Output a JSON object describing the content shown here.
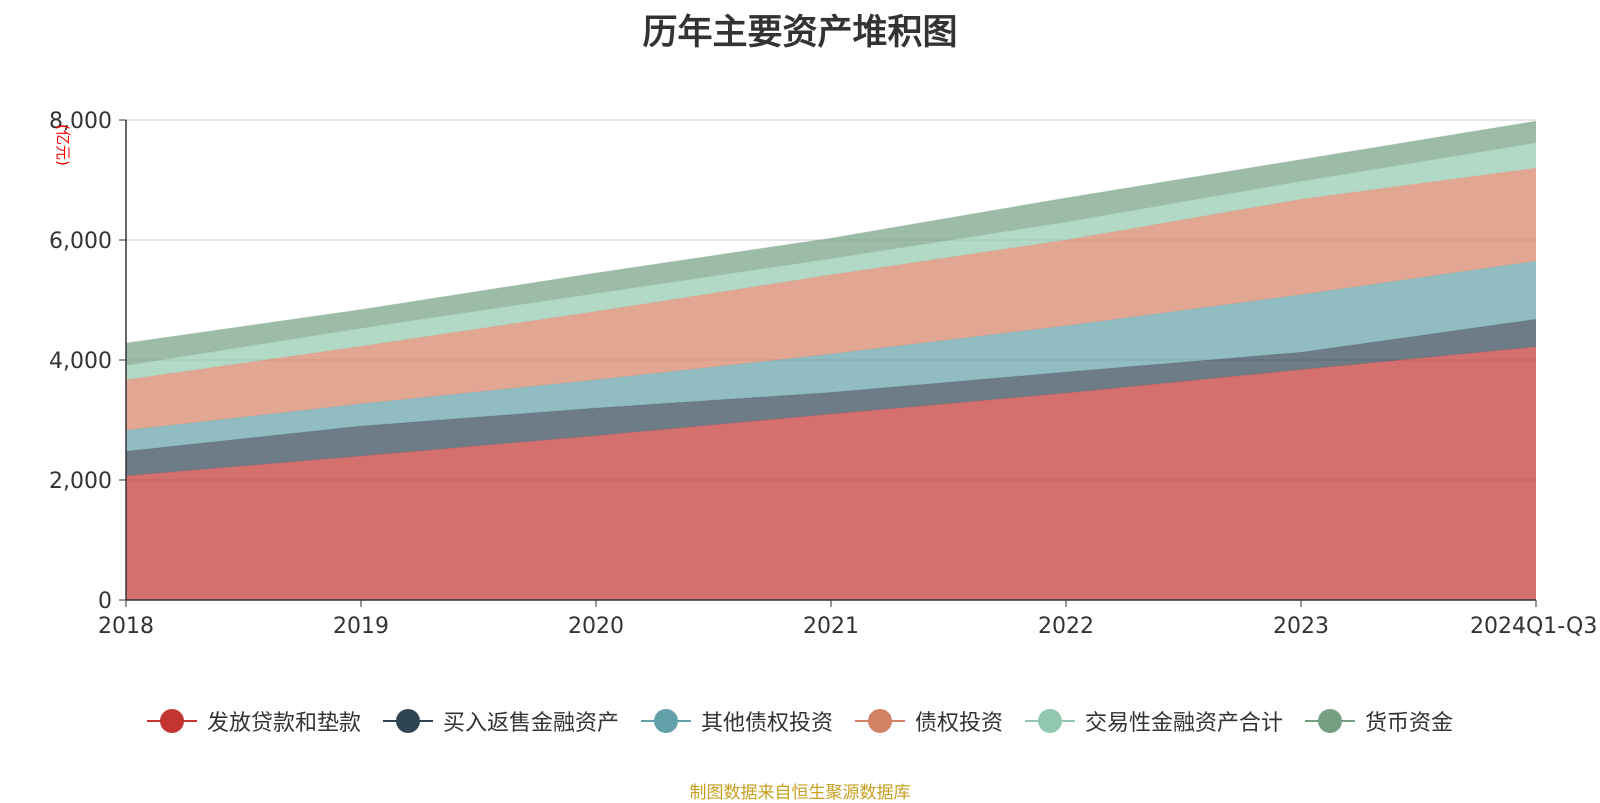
{
  "chart_data": {
    "type": "area",
    "stacked": true,
    "title": "历年主要资产堆积图",
    "ylabel": "(亿元)",
    "xlabel": "",
    "categories": [
      "2018",
      "2019",
      "2020",
      "2021",
      "2022",
      "2023",
      "2024Q1-Q3"
    ],
    "ylim": [
      0,
      8000
    ],
    "yticks": [
      "0",
      "2,000",
      "4,000",
      "6,000",
      "8,000"
    ],
    "grid": true,
    "legend_position": "bottom",
    "series": [
      {
        "name": "发放贷款和垫款",
        "color": "#c23531",
        "values": [
          2070,
          2400,
          2740,
          3100,
          3450,
          3840,
          4220
        ]
      },
      {
        "name": "买入返售金融资产",
        "color": "#2f4554",
        "values": [
          410,
          500,
          460,
          360,
          350,
          290,
          460
        ]
      },
      {
        "name": "其他债权投资",
        "color": "#61a0a8",
        "values": [
          350,
          370,
          470,
          640,
          770,
          960,
          970
        ]
      },
      {
        "name": "债权投资",
        "color": "#d48265",
        "values": [
          840,
          960,
          1140,
          1320,
          1430,
          1590,
          1550
        ]
      },
      {
        "name": "交易性金融资产合计",
        "color": "#91c7ae",
        "values": [
          240,
          300,
          300,
          270,
          300,
          300,
          420
        ]
      },
      {
        "name": "货币资金",
        "color": "#749f83",
        "values": [
          370,
          310,
          340,
          340,
          400,
          360,
          360
        ]
      }
    ]
  },
  "source_note": "制图数据来自恒生聚源数据库"
}
